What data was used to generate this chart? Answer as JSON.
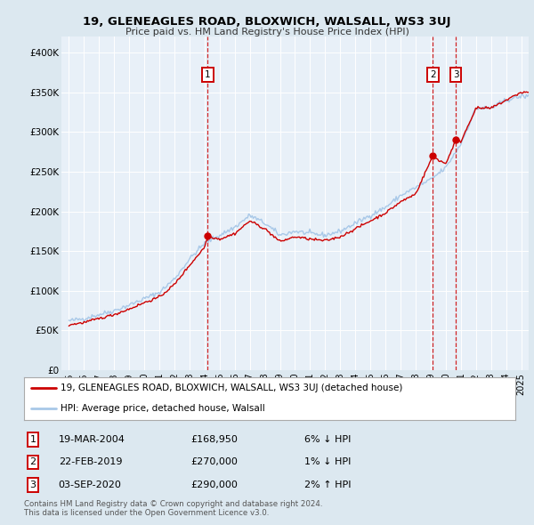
{
  "title": "19, GLENEAGLES ROAD, BLOXWICH, WALSALL, WS3 3UJ",
  "subtitle": "Price paid vs. HM Land Registry's House Price Index (HPI)",
  "hpi_color": "#a8c8e8",
  "price_color": "#cc0000",
  "background_color": "#dce8f0",
  "plot_bg_color": "#e8f0f8",
  "ylim": [
    0,
    420000
  ],
  "yticks": [
    0,
    50000,
    100000,
    150000,
    200000,
    250000,
    300000,
    350000,
    400000
  ],
  "ytick_labels": [
    "£0",
    "£50K",
    "£100K",
    "£150K",
    "£200K",
    "£250K",
    "£300K",
    "£350K",
    "£400K"
  ],
  "xlim_start": 1994.5,
  "xlim_end": 2025.5,
  "xtick_years": [
    1995,
    1996,
    1997,
    1998,
    1999,
    2000,
    2001,
    2002,
    2003,
    2004,
    2005,
    2006,
    2007,
    2008,
    2009,
    2010,
    2011,
    2012,
    2013,
    2014,
    2015,
    2016,
    2017,
    2018,
    2019,
    2020,
    2021,
    2022,
    2023,
    2024,
    2025
  ],
  "sales": [
    {
      "label": "1",
      "date": "19-MAR-2004",
      "x": 2004.21,
      "price": 168950,
      "pct": "6%",
      "direction": "↓"
    },
    {
      "label": "2",
      "date": "22-FEB-2019",
      "x": 2019.14,
      "price": 270000,
      "pct": "1%",
      "direction": "↓"
    },
    {
      "label": "3",
      "date": "03-SEP-2020",
      "x": 2020.67,
      "price": 290000,
      "pct": "2%",
      "direction": "↑"
    }
  ],
  "legend_label_price": "19, GLENEAGLES ROAD, BLOXWICH, WALSALL, WS3 3UJ (detached house)",
  "legend_label_hpi": "HPI: Average price, detached house, Walsall",
  "footer1": "Contains HM Land Registry data © Crown copyright and database right 2024.",
  "footer2": "This data is licensed under the Open Government Licence v3.0."
}
